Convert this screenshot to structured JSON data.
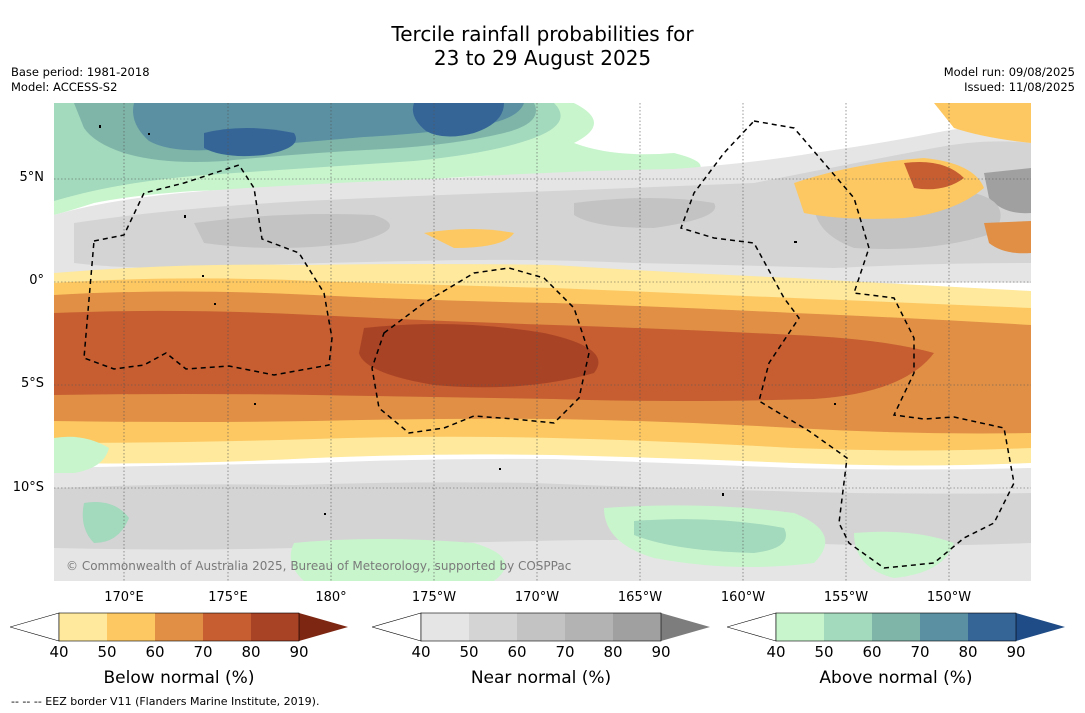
{
  "title_line1": "Tercile rainfall probabilities for",
  "title_line2": "23 to 29 August 2025",
  "base_period": "Base period: 1981-2018",
  "model": "Model: ACCESS-S2",
  "model_run": "Model run: 09/08/2025",
  "issued": "Issued: 11/08/2025",
  "lat_labels": [
    "5°N",
    "0°",
    "5°S",
    "10°S"
  ],
  "lon_labels": [
    "170°E",
    "175°E",
    "180°",
    "175°W",
    "170°W",
    "165°W",
    "160°W",
    "155°W",
    "150°W"
  ],
  "copyright": "© Commonwealth of Australia 2025, Bureau of Meteorology, supported by COSPPac",
  "colorbars": [
    {
      "label": "Below normal (%)",
      "ticks": [
        "40",
        "50",
        "60",
        "70",
        "80",
        "90"
      ],
      "colors": [
        "#ffffff",
        "#fee99c",
        "#fdc862",
        "#e08f45",
        "#c65e31",
        "#a84325",
        "#7d2712"
      ]
    },
    {
      "label": "Near normal (%)",
      "ticks": [
        "40",
        "50",
        "60",
        "70",
        "80",
        "90"
      ],
      "colors": [
        "#ffffff",
        "#e5e5e5",
        "#d4d4d4",
        "#c3c3c3",
        "#b3b3b3",
        "#a0a0a0",
        "#7d7d7d"
      ]
    },
    {
      "label": "Above normal (%)",
      "ticks": [
        "40",
        "50",
        "60",
        "70",
        "80",
        "90"
      ],
      "colors": [
        "#ffffff",
        "#c8f5cc",
        "#a3d9bd",
        "#7eb5a8",
        "#5a90a2",
        "#356597",
        "#1f4c86"
      ]
    }
  ],
  "footnote": "-- -- -- EEZ border V11 (Flanders Marine Institute, 2019)."
}
